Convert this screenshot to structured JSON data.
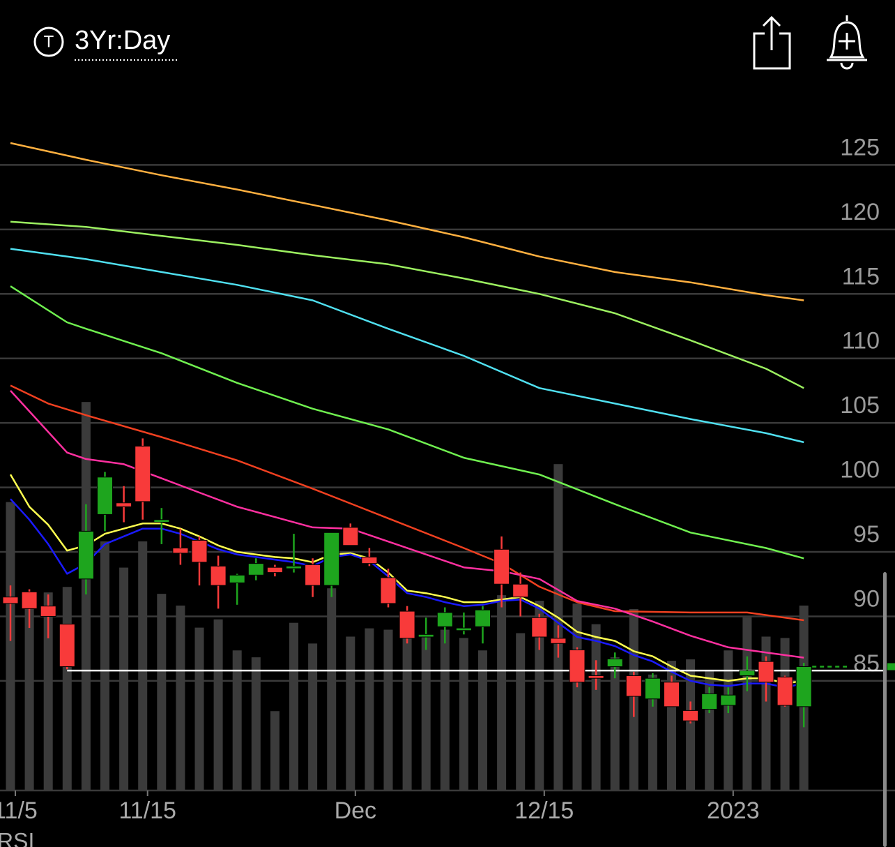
{
  "header": {
    "ticker_icon": "T",
    "range_label": "3Yr:Day"
  },
  "indicator_label": "RSI",
  "chart_data": {
    "type": "candlestick",
    "categories": [
      "11/5",
      null,
      null,
      null,
      null,
      null,
      null,
      "11/15",
      null,
      null,
      null,
      null,
      null,
      null,
      null,
      null,
      null,
      null,
      "Dec",
      null,
      null,
      null,
      null,
      null,
      null,
      null,
      null,
      null,
      "12/15",
      null,
      null,
      null,
      null,
      null,
      null,
      null,
      null,
      null,
      "2023",
      null,
      null,
      null,
      null
    ],
    "open": [
      91.5,
      91.9,
      90.8,
      89.4,
      92.9,
      97.9,
      98.8,
      103.2,
      97.3,
      95.3,
      95.9,
      93.9,
      92.6,
      93.2,
      93.8,
      93.7,
      94.0,
      92.4,
      96.9,
      94.6,
      93.0,
      90.4,
      88.4,
      89.2,
      88.9,
      89.2,
      95.2,
      92.5,
      89.9,
      88.3,
      87.4,
      85.4,
      86.1,
      85.4,
      83.6,
      84.9,
      82.7,
      82.8,
      83.1,
      85.4,
      86.5,
      85.3,
      83.0
    ],
    "high": [
      92.4,
      92.1,
      91.7,
      89.4,
      98.7,
      101.2,
      100.1,
      103.8,
      98.4,
      96.8,
      96.2,
      94.7,
      93.3,
      94.5,
      94.0,
      96.4,
      94.5,
      96.5,
      97.2,
      95.3,
      93.7,
      90.8,
      89.9,
      90.7,
      90.3,
      90.8,
      96.2,
      93.4,
      90.2,
      89.3,
      87.6,
      86.6,
      87.2,
      85.7,
      85.6,
      85.4,
      83.4,
      84.5,
      84.5,
      86.9,
      86.9,
      85.4,
      86.4
    ],
    "low": [
      88.1,
      89.1,
      88.3,
      85.9,
      91.7,
      96.6,
      97.3,
      97.5,
      95.6,
      94.0,
      92.4,
      90.6,
      90.9,
      92.8,
      93.1,
      93.4,
      91.5,
      91.5,
      95.5,
      93.9,
      90.7,
      87.9,
      87.4,
      87.9,
      88.6,
      87.9,
      90.7,
      90.0,
      87.4,
      86.8,
      84.5,
      84.3,
      85.2,
      82.2,
      83.0,
      83.0,
      81.7,
      82.5,
      82.5,
      84.2,
      83.4,
      83.0,
      81.4
    ],
    "close": [
      91.0,
      90.6,
      90.0,
      86.1,
      96.6,
      100.8,
      98.5,
      98.9,
      97.5,
      94.9,
      94.2,
      92.4,
      93.2,
      94.1,
      93.4,
      93.9,
      92.4,
      96.5,
      95.5,
      94.1,
      91.0,
      88.3,
      88.6,
      90.3,
      89.1,
      90.5,
      92.5,
      91.5,
      88.4,
      87.9,
      84.9,
      85.2,
      86.7,
      83.8,
      85.2,
      83.0,
      81.9,
      84.0,
      83.9,
      85.8,
      84.9,
      83.1,
      86.1
    ],
    "up_color": "#1ea51e",
    "down_color": "#f83a3a",
    "volume": [
      418,
      263,
      287,
      295,
      563,
      361,
      323,
      361,
      285,
      268,
      236,
      248,
      203,
      193,
      115,
      243,
      213,
      293,
      223,
      235,
      233,
      253,
      223,
      233,
      221,
      203,
      283,
      228,
      275,
      473,
      271,
      241,
      193,
      263,
      168,
      188,
      190,
      173,
      203,
      251,
      223,
      221,
      268
    ],
    "volume_lim": [
      0,
      1000
    ],
    "volume_color": "#3b3b3b",
    "moving_averages": [
      {
        "color": "#ffb040",
        "x": [
          0,
          4,
          8,
          12,
          16,
          20,
          24,
          28,
          32,
          36,
          40,
          42
        ],
        "values": [
          126.7,
          125.4,
          124.2,
          123.1,
          121.9,
          120.7,
          119.4,
          117.9,
          116.7,
          115.9,
          114.9,
          114.5
        ]
      },
      {
        "color": "#9cf060",
        "x": [
          0,
          4,
          8,
          12,
          16,
          20,
          24,
          28,
          32,
          36,
          40,
          42
        ],
        "values": [
          120.6,
          120.2,
          119.5,
          118.8,
          118.0,
          117.3,
          116.2,
          115.0,
          113.5,
          111.4,
          109.2,
          107.7
        ]
      },
      {
        "color": "#50e0f0",
        "x": [
          0,
          4,
          8,
          12,
          16,
          20,
          24,
          28,
          32,
          36,
          40,
          42
        ],
        "values": [
          118.5,
          117.7,
          116.7,
          115.7,
          114.5,
          112.3,
          110.2,
          107.7,
          106.5,
          105.3,
          104.2,
          103.5
        ]
      },
      {
        "color": "#70f050",
        "x": [
          0,
          3,
          4,
          8,
          12,
          16,
          20,
          24,
          28,
          32,
          36,
          40,
          42
        ],
        "values": [
          115.6,
          112.8,
          112.3,
          110.4,
          108.1,
          106.1,
          104.5,
          102.3,
          101.0,
          98.7,
          96.5,
          95.3,
          94.5
        ]
      },
      {
        "color": "#f04020",
        "x": [
          0,
          2,
          4,
          8,
          12,
          16,
          20,
          24,
          26,
          28,
          30,
          32,
          36,
          39,
          42
        ],
        "values": [
          107.9,
          106.5,
          105.6,
          103.9,
          102.1,
          99.9,
          97.6,
          95.3,
          94.1,
          92.3,
          91.1,
          90.4,
          90.3,
          90.3,
          89.7
        ]
      },
      {
        "color": "#ff30a0",
        "x": [
          0,
          3,
          4,
          6,
          8,
          10,
          12,
          14,
          16,
          18,
          20,
          22,
          24,
          26,
          28,
          30,
          32,
          34,
          36,
          38,
          40,
          42
        ],
        "values": [
          107.5,
          102.7,
          102.2,
          101.8,
          100.7,
          99.6,
          98.5,
          97.7,
          96.9,
          96.8,
          95.8,
          94.8,
          93.8,
          93.5,
          92.9,
          91.2,
          90.6,
          89.6,
          88.5,
          87.6,
          87.2,
          86.8
        ]
      },
      {
        "color": "#ffff50",
        "values": [
          101.0,
          98.5,
          97.1,
          95.1,
          95.5,
          96.4,
          96.8,
          97.2,
          97.2,
          96.8,
          96.2,
          95.5,
          95.0,
          94.8,
          94.6,
          94.5,
          94.2,
          94.8,
          94.9,
          94.5,
          93.4,
          92.0,
          91.8,
          91.5,
          91.1,
          91.1,
          91.3,
          91.5,
          90.8,
          89.9,
          88.8,
          88.4,
          88.1,
          87.3,
          86.9,
          86.1,
          85.4,
          85.2,
          85.0,
          85.2,
          85.2,
          84.8,
          85.0
        ]
      },
      {
        "color": "#1a1aff",
        "values": [
          99.1,
          97.5,
          95.6,
          93.3,
          94.1,
          95.6,
          96.2,
          96.8,
          96.8,
          96.4,
          95.8,
          95.2,
          94.8,
          94.6,
          94.4,
          94.2,
          93.9,
          94.6,
          94.8,
          94.3,
          93.1,
          91.8,
          91.5,
          91.1,
          90.8,
          90.9,
          91.2,
          91.3,
          90.6,
          89.5,
          88.4,
          88.1,
          87.7,
          87.0,
          86.5,
          85.7,
          85.0,
          84.7,
          84.6,
          84.8,
          84.8,
          84.5,
          84.8
        ]
      }
    ],
    "reference_line": 85.8,
    "reference_color": "#ffffff",
    "ylim": [
      76.5,
      130
    ],
    "yticks": [
      125,
      120,
      115,
      110,
      105,
      100,
      95,
      90,
      85
    ],
    "grid": true
  }
}
